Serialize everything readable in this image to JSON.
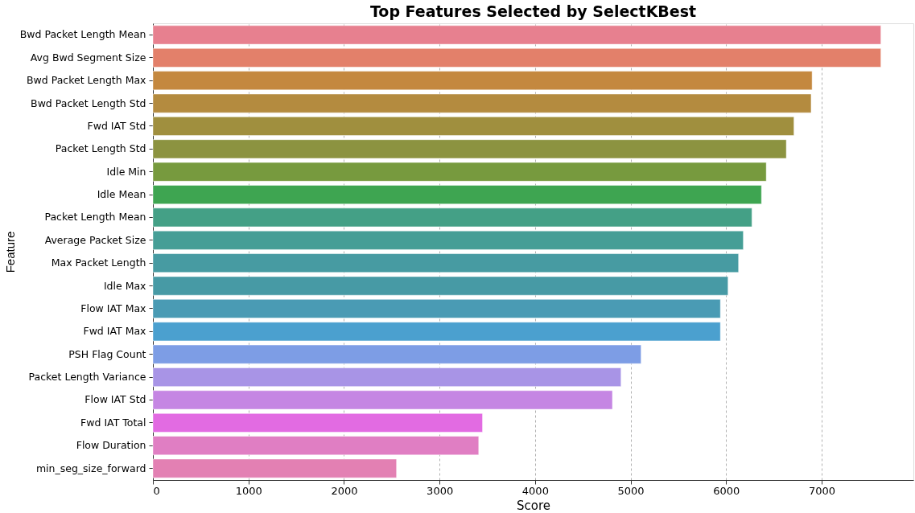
{
  "chart_data": {
    "type": "bar",
    "orientation": "horizontal",
    "title": "Top Features Selected by SelectKBest",
    "xlabel": "Score",
    "ylabel": "Feature",
    "categories": [
      "Bwd Packet Length Mean",
      "Avg Bwd Segment Size",
      "Bwd Packet Length Max",
      "Bwd Packet Length Std",
      "Fwd IAT Std",
      "Packet Length Std",
      "Idle Min",
      "Idle Mean",
      "Packet Length Mean",
      "Average Packet Size",
      "Max Packet Length",
      "Idle Max",
      "Flow IAT Max",
      "Fwd IAT Max",
      "PSH Flag Count",
      "Packet Length Variance",
      "Flow IAT Std",
      "Fwd IAT Total",
      "Flow Duration",
      "min_seg_size_forward"
    ],
    "values": [
      7620,
      7620,
      6900,
      6890,
      6710,
      6630,
      6420,
      6370,
      6270,
      6180,
      6130,
      6020,
      5940,
      5940,
      5110,
      4900,
      4810,
      3450,
      3410,
      2550
    ],
    "colors": [
      "#e7808f",
      "#e3806a",
      "#c4883f",
      "#b48b3f",
      "#a08f3e",
      "#8c9340",
      "#779a3e",
      "#3ea551",
      "#44a086",
      "#459e96",
      "#479ba2",
      "#479aa5",
      "#4a9bb4",
      "#4ba0cf",
      "#7d9de5",
      "#a894e6",
      "#c586e3",
      "#e26be2",
      "#e07ec3",
      "#e380b3"
    ],
    "xlim": [
      0,
      7960
    ],
    "xticks": [
      0,
      1000,
      2000,
      3000,
      4000,
      5000,
      6000,
      7000
    ],
    "grid": "x"
  }
}
